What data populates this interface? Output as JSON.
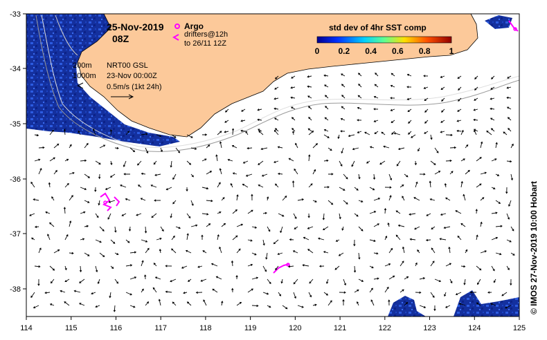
{
  "map": {
    "date": "25-Nov-2019",
    "hour": "08Z",
    "legend": {
      "argo_label": "Argo",
      "drifters_label": "drifters@12h",
      "drifters_sub": "to 26/11 12Z"
    },
    "info": {
      "isobath_200": "200m",
      "isobath_1000": "1000m",
      "product": "NRT00 GSL",
      "product_date": "23-Nov 00:00Z",
      "scale_label": "0.5m/s (1kt 24h)"
    },
    "colorbar": {
      "title": "std dev of 4hr SST comp",
      "ticks": [
        "0",
        "0.2",
        "0.4",
        "0.6",
        "0.8",
        "1"
      ]
    },
    "x_ticks": [
      "114",
      "115",
      "116",
      "117",
      "118",
      "119",
      "120",
      "121",
      "122",
      "123",
      "124",
      "125"
    ],
    "y_ticks": [
      "-33",
      "-34",
      "-35",
      "-36",
      "-37",
      "-38"
    ],
    "credit": "© IMOS 27-Nov-2019 10:00 Hobart",
    "colors": {
      "land": "#fcc99a",
      "ocean_dark": "#102a9a",
      "ocean_mid": "#2050d8",
      "argo": "#ff00ff",
      "arrow": "#000000",
      "isobath_light": "#dddddd",
      "isobath_dark": "#999999"
    }
  }
}
